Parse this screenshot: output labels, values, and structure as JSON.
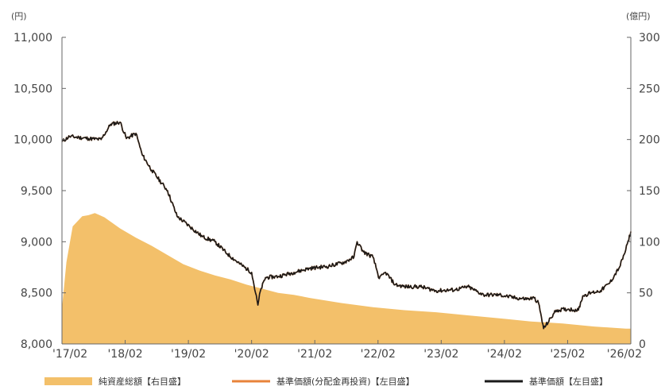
{
  "chart_data": {
    "type": "area+line",
    "left_axis": {
      "unit": "(円)",
      "min": 8000,
      "max": 11000,
      "ticks": [
        "8,000",
        "8,500",
        "9,000",
        "9,500",
        "10,000",
        "10,500",
        "11,000"
      ],
      "tick_values": [
        8000,
        8500,
        9000,
        9500,
        10000,
        10500,
        11000
      ]
    },
    "right_axis": {
      "unit": "(億円)",
      "min": 0,
      "max": 300,
      "ticks": [
        "0",
        "50",
        "100",
        "150",
        "200",
        "250",
        "300"
      ],
      "tick_values": [
        0,
        50,
        100,
        150,
        200,
        250,
        300
      ]
    },
    "x_axis": {
      "min": 2017.08,
      "max": 2026.08,
      "ticks": [
        "'17/02",
        "'18/02",
        "'19/02",
        "'20/02",
        "'21/02",
        "'22/02",
        "'23/02",
        "'24/02",
        "'25/02",
        "'26/02"
      ],
      "tick_values": [
        2017.08,
        2018.08,
        2019.08,
        2020.08,
        2021.08,
        2022.08,
        2023.08,
        2024.08,
        2025.08,
        2026.08
      ]
    },
    "series": [
      {
        "name": "純資産総額【右目盛】",
        "kind": "area",
        "axis": "right",
        "color": "#f3c06a",
        "x": [
          2017.08,
          2017.15,
          2017.25,
          2017.4,
          2017.5,
          2017.6,
          2017.75,
          2018.0,
          2018.25,
          2018.5,
          2018.75,
          2019.0,
          2019.25,
          2019.5,
          2019.75,
          2020.0,
          2020.25,
          2020.5,
          2020.75,
          2021.0,
          2021.5,
          2022.0,
          2022.5,
          2023.0,
          2023.5,
          2024.0,
          2024.5,
          2025.0,
          2025.5,
          2026.0,
          2026.08
        ],
        "values": [
          35,
          80,
          115,
          125,
          126,
          128,
          124,
          113,
          104,
          96,
          87,
          78,
          72,
          67,
          63,
          58,
          54,
          50,
          48,
          45,
          40,
          36,
          33,
          31,
          28,
          25,
          22,
          20,
          17,
          15,
          15
        ]
      },
      {
        "name": "基準価額(分配金再投資)【左目盛】",
        "kind": "line",
        "axis": "left",
        "color": "#e8833a",
        "x": [
          2017.08,
          2017.2,
          2017.35,
          2017.5,
          2017.7,
          2017.85,
          2018.0,
          2018.1,
          2018.25,
          2018.35,
          2018.5,
          2018.75,
          2018.9,
          2019.1,
          2019.3,
          2019.5,
          2019.7,
          2019.9,
          2020.08,
          2020.18,
          2020.22,
          2020.3,
          2020.5,
          2020.75,
          2021.0,
          2021.3,
          2021.55,
          2021.7,
          2021.75,
          2021.85,
          2022.0,
          2022.1,
          2022.2,
          2022.35,
          2022.5,
          2022.75,
          2023.0,
          2023.3,
          2023.5,
          2023.75,
          2024.0,
          2024.25,
          2024.45,
          2024.55,
          2024.62,
          2024.7,
          2024.9,
          2025.1,
          2025.25,
          2025.32,
          2025.45,
          2025.6,
          2025.75,
          2025.9,
          2026.0,
          2026.08
        ],
        "values": [
          9980,
          10030,
          10020,
          10010,
          10000,
          10150,
          10170,
          10010,
          10060,
          9850,
          9700,
          9500,
          9250,
          9150,
          9050,
          9000,
          8880,
          8780,
          8700,
          8380,
          8520,
          8650,
          8660,
          8700,
          8740,
          8760,
          8800,
          8850,
          9000,
          8900,
          8850,
          8640,
          8700,
          8580,
          8560,
          8560,
          8520,
          8530,
          8560,
          8480,
          8480,
          8450,
          8440,
          8450,
          8400,
          8150,
          8330,
          8340,
          8330,
          8470,
          8500,
          8520,
          8600,
          8750,
          8920,
          9100
        ]
      },
      {
        "name": "基準価額【左目盛】",
        "kind": "line",
        "axis": "left",
        "color": "#1a1a1a",
        "x": [
          2017.08,
          2017.2,
          2017.35,
          2017.5,
          2017.7,
          2017.85,
          2018.0,
          2018.1,
          2018.25,
          2018.35,
          2018.5,
          2018.75,
          2018.9,
          2019.1,
          2019.3,
          2019.5,
          2019.7,
          2019.9,
          2020.08,
          2020.18,
          2020.22,
          2020.3,
          2020.5,
          2020.75,
          2021.0,
          2021.3,
          2021.55,
          2021.7,
          2021.75,
          2021.85,
          2022.0,
          2022.1,
          2022.2,
          2022.35,
          2022.5,
          2022.75,
          2023.0,
          2023.3,
          2023.5,
          2023.75,
          2024.0,
          2024.25,
          2024.45,
          2024.55,
          2024.62,
          2024.7,
          2024.9,
          2025.1,
          2025.25,
          2025.32,
          2025.45,
          2025.6,
          2025.75,
          2025.9,
          2026.0,
          2026.08
        ],
        "values": [
          9980,
          10030,
          10020,
          10010,
          10000,
          10150,
          10170,
          10010,
          10060,
          9850,
          9700,
          9500,
          9250,
          9150,
          9050,
          9000,
          8880,
          8780,
          8700,
          8380,
          8520,
          8650,
          8660,
          8700,
          8740,
          8760,
          8800,
          8850,
          9000,
          8900,
          8850,
          8640,
          8700,
          8580,
          8560,
          8560,
          8520,
          8530,
          8560,
          8480,
          8480,
          8450,
          8440,
          8450,
          8400,
          8150,
          8330,
          8340,
          8330,
          8470,
          8500,
          8520,
          8600,
          8750,
          8920,
          9100
        ]
      }
    ],
    "legend": {
      "placement": "bottom",
      "items": [
        "純資産総額【右目盛】",
        "基準価額(分配金再投資)【左目盛】",
        "基準価額【左目盛】"
      ]
    },
    "grid": false
  }
}
